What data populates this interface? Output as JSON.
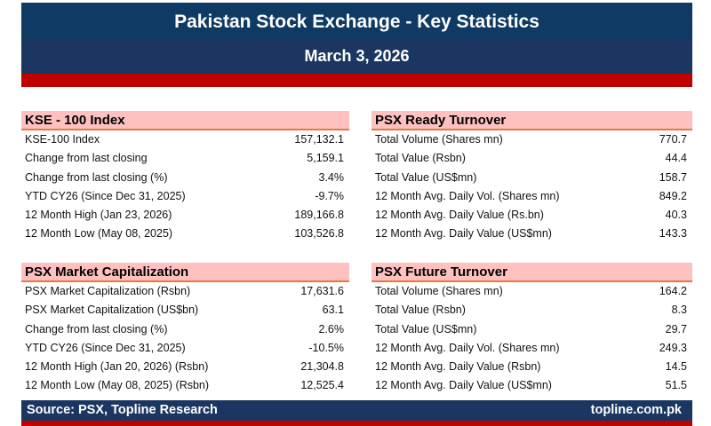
{
  "header": {
    "title": "Pakistan Stock Exchange - Key Statistics",
    "date": "March 3, 2026"
  },
  "colors": {
    "navy": "#1b3660",
    "red": "#c00000",
    "section_bg": "#ffc0c0",
    "section_border": "#e8783c"
  },
  "sections": [
    {
      "title": "KSE - 100 Index",
      "rows": [
        {
          "label": "KSE-100 Index",
          "value": "157,132.1"
        },
        {
          "label": "Change from last closing",
          "value": "5,159.1"
        },
        {
          "label": "Change from last closing (%)",
          "value": "3.4%"
        },
        {
          "label": "YTD CY26 (Since Dec 31, 2025)",
          "value": "-9.7%"
        },
        {
          "label": "12 Month High (Jan 23, 2026)",
          "value": "189,166.8"
        },
        {
          "label": "12 Month Low (May 08, 2025)",
          "value": "103,526.8"
        }
      ]
    },
    {
      "title": "PSX Ready Turnover",
      "rows": [
        {
          "label": "Total Volume (Shares mn)",
          "value": "770.7"
        },
        {
          "label": "Total Value (Rsbn)",
          "value": "44.4"
        },
        {
          "label": "Total Value (US$mn)",
          "value": "158.7"
        },
        {
          "label": "12 Month Avg. Daily Vol. (Shares mn)",
          "value": "849.2"
        },
        {
          "label": "12 Month Avg. Daily Value (Rs.bn)",
          "value": "40.3"
        },
        {
          "label": "12 Month Avg. Daily Value (US$mn)",
          "value": "143.3"
        }
      ]
    },
    {
      "title": "PSX Market Capitalization",
      "rows": [
        {
          "label": "PSX Market Capitalization (Rsbn)",
          "value": "17,631.6"
        },
        {
          "label": "PSX Market Capitalization (US$bn)",
          "value": "63.1"
        },
        {
          "label": "Change from last closing (%)",
          "value": "2.6%"
        },
        {
          "label": "YTD CY26 (Since Dec 31, 2025)",
          "value": "-10.5%"
        },
        {
          "label": "12 Month High (Jan 20, 2026) (Rsbn)",
          "value": "21,304.8"
        },
        {
          "label": "12 Month Low (May 08, 2025) (Rsbn)",
          "value": "12,525.4"
        }
      ]
    },
    {
      "title": "PSX Future Turnover",
      "rows": [
        {
          "label": "Total Volume (Shares mn)",
          "value": "164.2"
        },
        {
          "label": "Total Value (Rsbn)",
          "value": "8.3"
        },
        {
          "label": "Total Value (US$mn)",
          "value": "29.7"
        },
        {
          "label": "12 Month Avg. Daily Vol. (Shares mn)",
          "value": "249.3"
        },
        {
          "label": "12 Month Avg. Daily Value (Rsbn)",
          "value": "14.5"
        },
        {
          "label": "12 Month Avg. Daily Value (US$mn)",
          "value": "51.5"
        }
      ]
    }
  ],
  "footer": {
    "source": "Source: PSX, Topline Research",
    "website": "topline.com.pk"
  }
}
